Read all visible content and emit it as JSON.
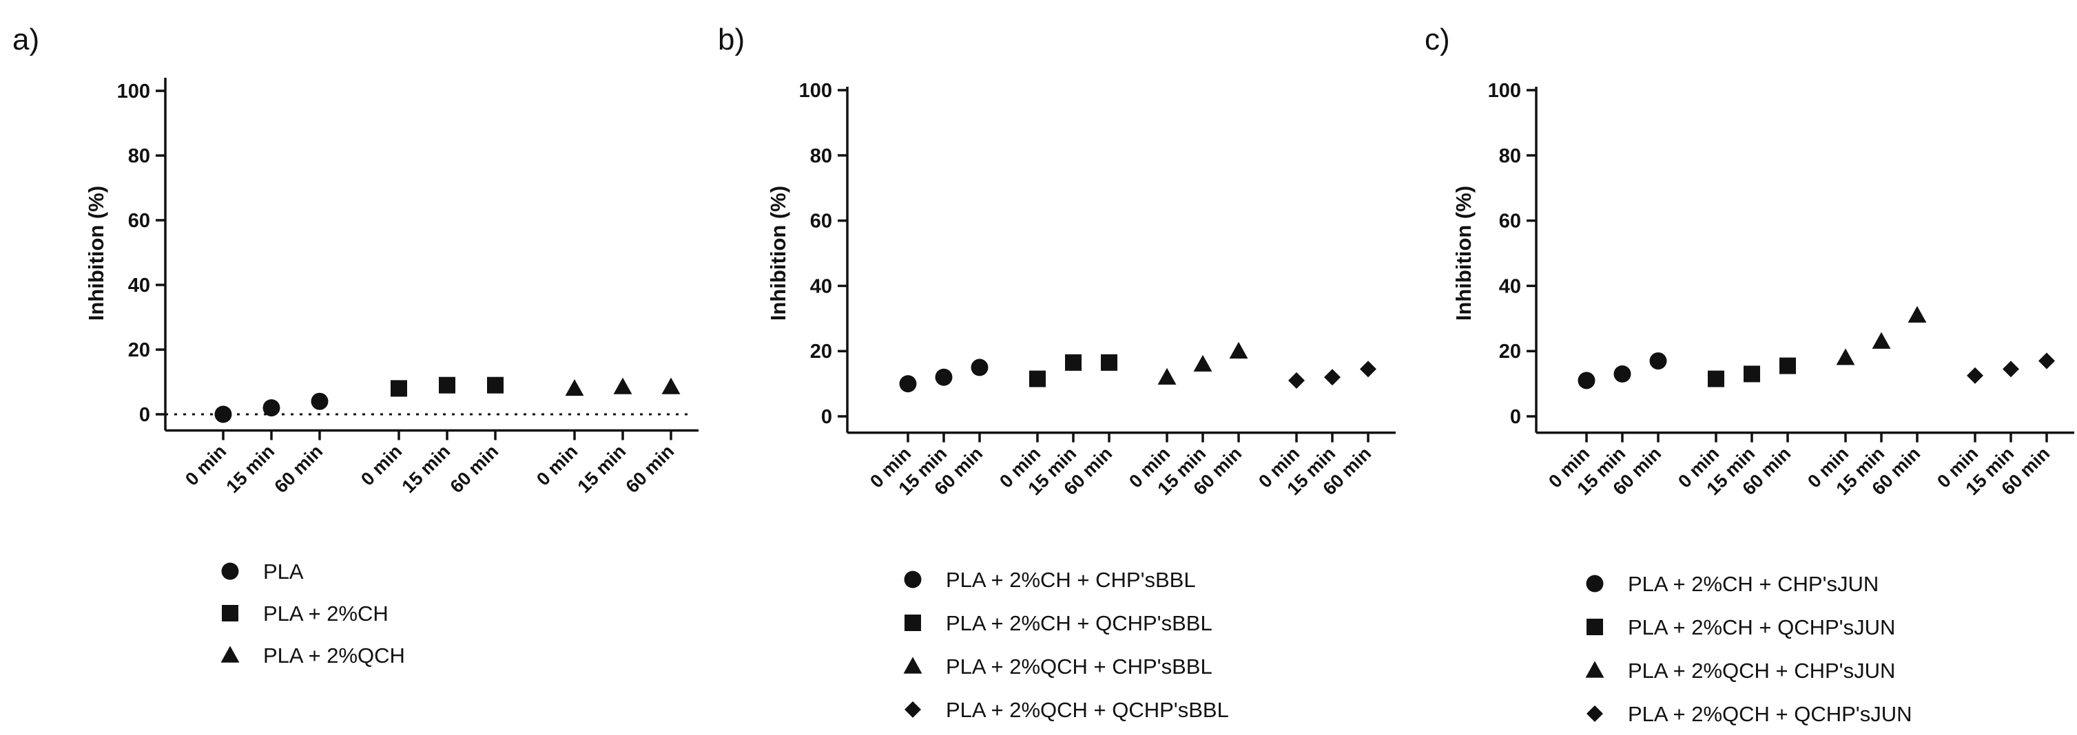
{
  "chart_data": [
    {
      "type": "scatter",
      "panel": "a)",
      "ylabel": "Inhibition (%)",
      "xlabel": "",
      "ylim": [
        -5,
        100
      ],
      "yticks": [
        0,
        20,
        40,
        60,
        80,
        100
      ],
      "zero_line": true,
      "x_labels": [
        "0 min",
        "15 min",
        "60 min"
      ],
      "series": [
        {
          "name": "PLA",
          "marker": "circle",
          "values": [
            0,
            2,
            4
          ]
        },
        {
          "name": "PLA + 2%CH",
          "marker": "square",
          "values": [
            8,
            9,
            9
          ]
        },
        {
          "name": "PLA + 2%QCH",
          "marker": "triangle",
          "values": [
            8,
            8.5,
            8.5
          ]
        }
      ]
    },
    {
      "type": "scatter",
      "panel": "b)",
      "ylabel": "Inhibition (%)",
      "xlabel": "",
      "ylim": [
        -5,
        100
      ],
      "yticks": [
        0,
        20,
        40,
        60,
        80,
        100
      ],
      "zero_line": false,
      "x_labels": [
        "0 min",
        "15 min",
        "60 min"
      ],
      "series": [
        {
          "name": "PLA + 2%CH + CHP'sBBL",
          "marker": "circle",
          "values": [
            10,
            12,
            15
          ]
        },
        {
          "name": "PLA + 2%CH + QCHP'sBBL",
          "marker": "square",
          "values": [
            11.5,
            16.5,
            16.5
          ]
        },
        {
          "name": "PLA + 2%QCH + CHP'sBBL",
          "marker": "triangle",
          "values": [
            12,
            16,
            20
          ]
        },
        {
          "name": "PLA + 2%QCH + QCHP'sBBL",
          "marker": "diamond",
          "values": [
            11,
            12,
            14.5
          ]
        }
      ]
    },
    {
      "type": "scatter",
      "panel": "c)",
      "ylabel": "Inhibition (%)",
      "xlabel": "",
      "ylim": [
        -5,
        100
      ],
      "yticks": [
        0,
        20,
        40,
        60,
        80,
        100
      ],
      "zero_line": false,
      "x_labels": [
        "0 min",
        "15 min",
        "60 min"
      ],
      "series": [
        {
          "name": "PLA + 2%CH + CHP'sJUN",
          "marker": "circle",
          "values": [
            11,
            13,
            17
          ]
        },
        {
          "name": "PLA + 2%CH + QCHP'sJUN",
          "marker": "square",
          "values": [
            11.5,
            13,
            15.5
          ]
        },
        {
          "name": "PLA + 2%QCH + CHP'sJUN",
          "marker": "triangle",
          "values": [
            18,
            23,
            31
          ]
        },
        {
          "name": "PLA + 2%QCH + QCHP'sJUN",
          "marker": "diamond",
          "values": [
            12.5,
            14.5,
            17
          ]
        }
      ]
    }
  ],
  "colors": {
    "marker": "#111111",
    "axis": "#111111"
  }
}
